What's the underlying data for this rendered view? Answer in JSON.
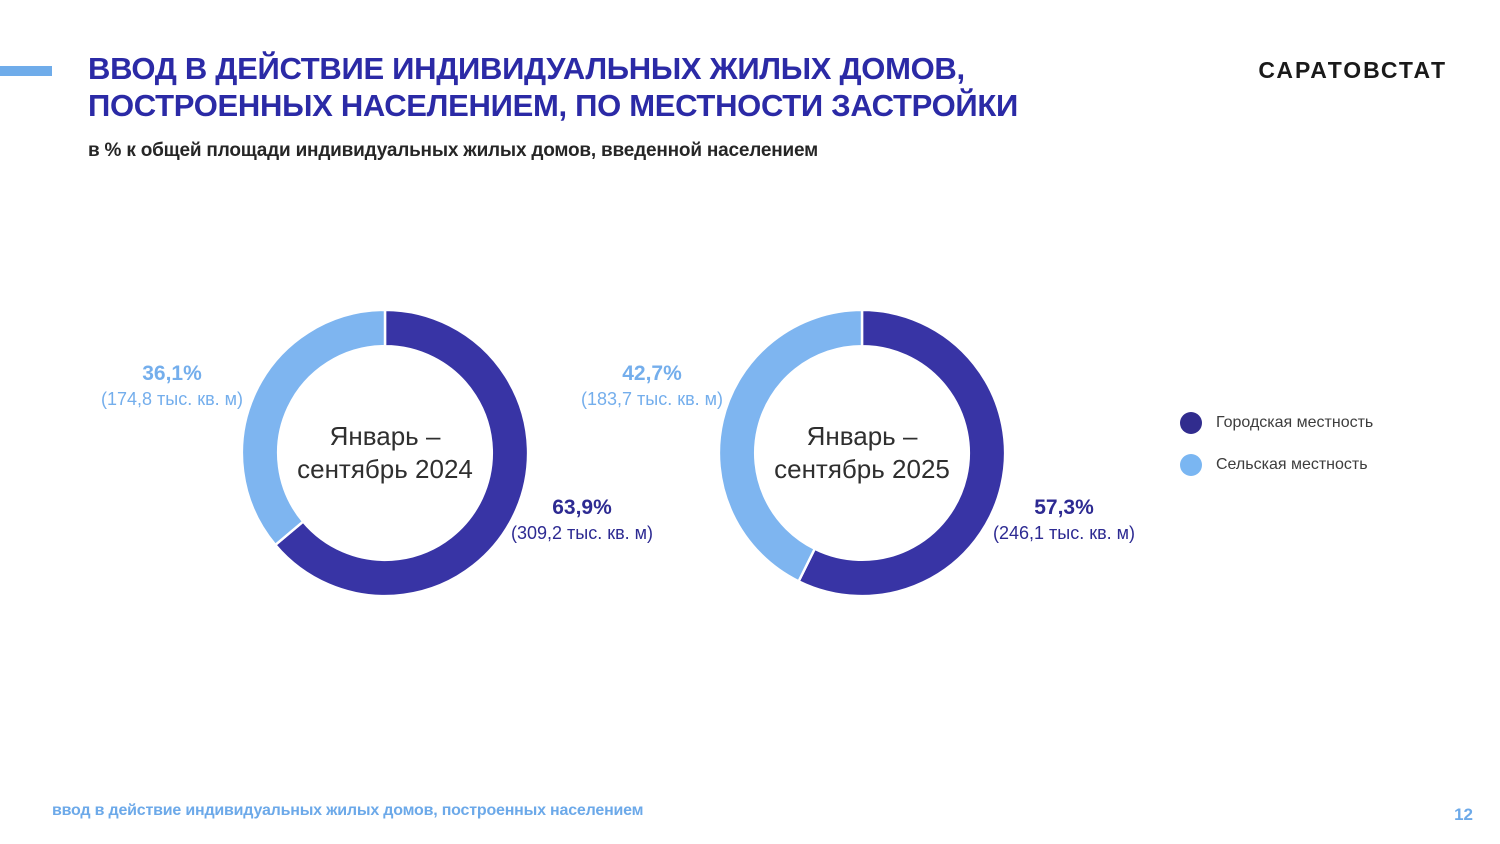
{
  "header": {
    "title_line1": "ВВОД В ДЕЙСТВИЕ ИНДИВИДУАЛЬНЫХ ЖИЛЫХ ДОМОВ,",
    "title_line2": "ПОСТРОЕННЫХ НАСЕЛЕНИЕМ, ПО МЕСТНОСТИ ЗАСТРОЙКИ",
    "logo": "САРАТОВСТАТ",
    "subtitle": "в % к общей площади индивидуальных жилых домов, введенной населением"
  },
  "colors": {
    "urban_dark_blue": "#3834A5",
    "rural_light_blue": "#7EB5F0",
    "title_indigo": "#2B2AA6",
    "accent_light_blue": "#6FACEA",
    "footer_blue": "#6CA9E9"
  },
  "legend": [
    {
      "key": "urban",
      "label": "Городская местность",
      "color": "#312C8E"
    },
    {
      "key": "rural",
      "label": "Сельская местность",
      "color": "#7AB6F2"
    }
  ],
  "chart_data": [
    {
      "type": "pie",
      "donut": true,
      "start_angle": "top",
      "direction": "clockwise",
      "title": "Январь – сентябрь 2024",
      "center_label": [
        "Январь –",
        "сентябрь 2024"
      ],
      "units": "тыс. кв. м",
      "series": [
        {
          "key": "urban",
          "name": "Городская местность",
          "value_pct": 63.9,
          "value_abs": 309.2,
          "label_pct": "63,9%",
          "label_abs": "(309,2 тыс. кв. м)",
          "color": "#3834A5"
        },
        {
          "key": "rural",
          "name": "Сельская местность",
          "value_pct": 36.1,
          "value_abs": 174.8,
          "label_pct": "36,1%",
          "label_abs": "(174,8 тыс. кв. м)",
          "color": "#7EB5F0"
        }
      ]
    },
    {
      "type": "pie",
      "donut": true,
      "start_angle": "top",
      "direction": "clockwise",
      "title": "Январь – сентябрь 2025",
      "center_label": [
        "Январь –",
        "сентябрь 2025"
      ],
      "units": "тыс. кв. м",
      "series": [
        {
          "key": "urban",
          "name": "Городская местность",
          "value_pct": 57.3,
          "value_abs": 246.1,
          "label_pct": "57,3%",
          "label_abs": "(246,1 тыс. кв. м)",
          "color": "#3834A5"
        },
        {
          "key": "rural",
          "name": "Сельская местность",
          "value_pct": 42.7,
          "value_abs": 183.7,
          "label_pct": "42,7%",
          "label_abs": "(183,7 тыс. кв. м)",
          "color": "#7EB5F0"
        }
      ]
    }
  ],
  "footer": {
    "text": "ввод в действие индивидуальных жилых домов, построенных населением",
    "page_number": "12"
  }
}
